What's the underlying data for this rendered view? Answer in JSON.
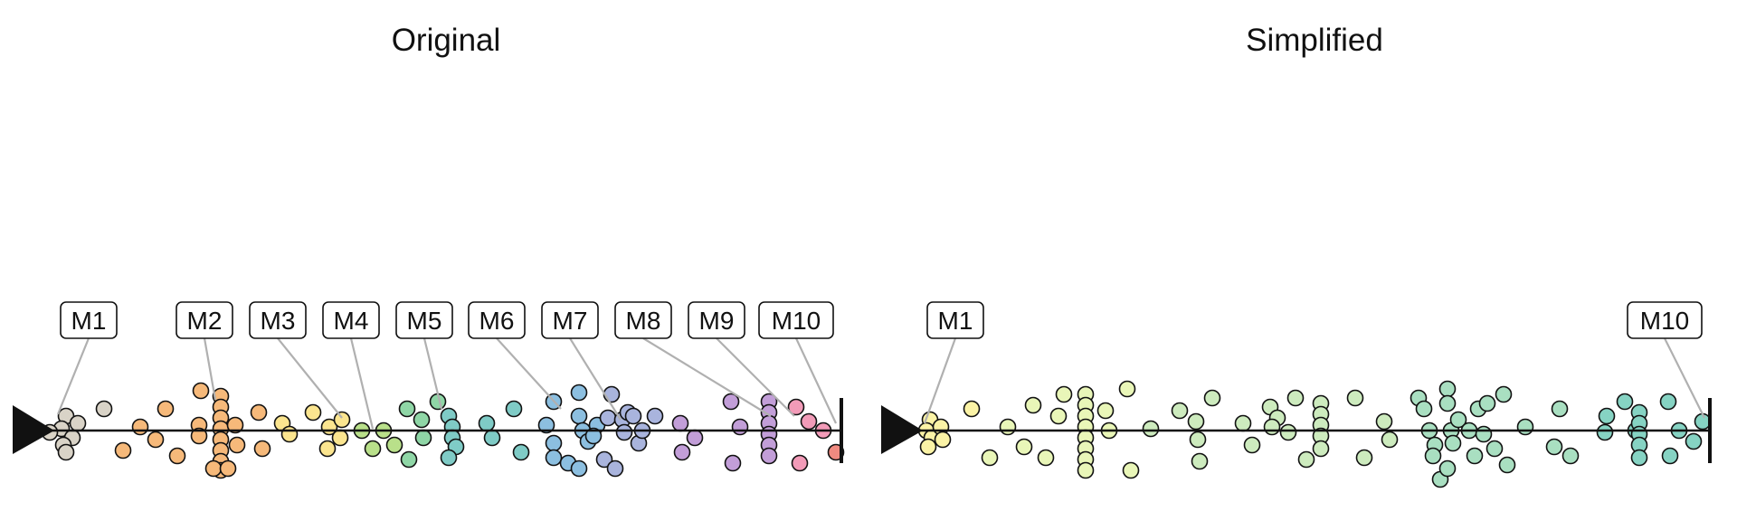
{
  "panels": [
    {
      "title": "Original",
      "markers": [
        "M1",
        "M2",
        "M3",
        "M4",
        "M5",
        "M6",
        "M7",
        "M8",
        "M9",
        "M10"
      ]
    },
    {
      "title": "Simplified",
      "markers": [
        "M1",
        "M10"
      ]
    }
  ],
  "colors": {
    "axis": "#111111",
    "leader": "#b0b0b0",
    "original_groups": [
      "#d9d3c7",
      "#f6b97a",
      "#fbe58f",
      "#b9e08a",
      "#8fd6a6",
      "#7fcbc6",
      "#8cbfe0",
      "#a9b4dd",
      "#c29ed8",
      "#f29bb8",
      "#f08a80"
    ],
    "simplified_groups": [
      "#fbf3a6",
      "#e9f6b8",
      "#cdebbe",
      "#a9dfc1",
      "#86d3c3"
    ]
  }
}
